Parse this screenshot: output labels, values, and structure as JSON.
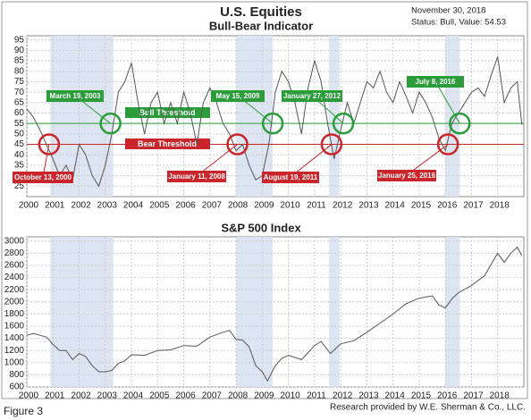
{
  "chart_data": [
    {
      "type": "line",
      "title": "U.S. Equities",
      "subtitle": "Bull-Bear Indicator",
      "date_note": "November 30, 2018",
      "status_note": "Status: Bull, Value: 54.53",
      "color": "#555555",
      "shade_color": "#dce5f1",
      "x": [
        2000,
        2000.25,
        2000.5,
        2000.75,
        2001,
        2001.25,
        2001.5,
        2001.75,
        2002,
        2002.25,
        2002.5,
        2002.75,
        2003,
        2003.25,
        2003.5,
        2003.75,
        2004,
        2004.25,
        2004.5,
        2004.75,
        2005,
        2005.25,
        2005.5,
        2005.75,
        2006,
        2006.25,
        2006.5,
        2006.75,
        2007,
        2007.25,
        2007.5,
        2007.75,
        2008,
        2008.25,
        2008.5,
        2008.75,
        2009,
        2009.25,
        2009.5,
        2009.75,
        2010,
        2010.25,
        2010.5,
        2010.75,
        2011,
        2011.25,
        2011.5,
        2011.75,
        2012,
        2012.25,
        2012.5,
        2012.75,
        2013,
        2013.25,
        2013.5,
        2013.75,
        2014,
        2014.25,
        2014.5,
        2014.75,
        2015,
        2015.25,
        2015.5,
        2015.75,
        2016,
        2016.25,
        2016.5,
        2016.75,
        2017,
        2017.25,
        2017.5,
        2017.75,
        2018,
        2018.25,
        2018.5,
        2018.75,
        2018.92
      ],
      "values": [
        62,
        58,
        52,
        45,
        38,
        30,
        35,
        28,
        45,
        40,
        30,
        25,
        35,
        50,
        70,
        75,
        84,
        65,
        50,
        65,
        70,
        55,
        65,
        55,
        70,
        60,
        45,
        65,
        72,
        65,
        55,
        50,
        42,
        45,
        35,
        28,
        30,
        45,
        70,
        80,
        75,
        65,
        50,
        72,
        85,
        75,
        55,
        38,
        52,
        65,
        55,
        65,
        75,
        72,
        80,
        70,
        65,
        75,
        68,
        60,
        70,
        65,
        58,
        48,
        42,
        55,
        60,
        65,
        70,
        72,
        68,
        78,
        87,
        65,
        72,
        75,
        54.53
      ],
      "xlim": [
        2000,
        2019
      ],
      "xticks": [
        2000,
        2001,
        2002,
        2003,
        2004,
        2005,
        2006,
        2007,
        2008,
        2009,
        2010,
        2011,
        2012,
        2013,
        2014,
        2015,
        2016,
        2017,
        2018
      ],
      "ylim": [
        20,
        97
      ],
      "yticks": [
        25,
        30,
        35,
        40,
        45,
        50,
        55,
        60,
        65,
        70,
        75,
        80,
        85,
        90,
        95
      ],
      "shaded_periods": [
        [
          2000.9,
          2003.3
        ],
        [
          2008,
          2009.4
        ],
        [
          2011.55,
          2011.95
        ],
        [
          2016,
          2016.55
        ]
      ],
      "thresholds": [
        {
          "label": "Bull Threshold",
          "value": 55,
          "color": "#2a9d3a"
        },
        {
          "label": "Bear Threshold",
          "value": 45,
          "color": "#c9252b"
        }
      ],
      "annotations": [
        {
          "label": "March 19, 2003",
          "x": 2003.2,
          "y": 55,
          "color": "#2a9d3a"
        },
        {
          "label": "May 15, 2009",
          "x": 2009.4,
          "y": 55,
          "color": "#2a9d3a"
        },
        {
          "label": "January 27, 2012",
          "x": 2012.1,
          "y": 55,
          "color": "#2a9d3a"
        },
        {
          "label": "July 8, 2016",
          "x": 2016.55,
          "y": 55,
          "color": "#2a9d3a"
        },
        {
          "label": "October 13, 2000",
          "x": 2000.85,
          "y": 45,
          "color": "#c9252b"
        },
        {
          "label": "January 11, 2008",
          "x": 2008.05,
          "y": 45,
          "color": "#c9252b"
        },
        {
          "label": "August 19, 2011",
          "x": 2011.65,
          "y": 45,
          "color": "#c9252b"
        },
        {
          "label": "January 25, 2016",
          "x": 2016.1,
          "y": 45,
          "color": "#c9252b"
        }
      ]
    },
    {
      "type": "line",
      "title": "S&P 500 Index",
      "color": "#555555",
      "shade_color": "#dce5f1",
      "x": [
        2000,
        2000.25,
        2000.5,
        2000.75,
        2001,
        2001.25,
        2001.5,
        2001.75,
        2002,
        2002.25,
        2002.5,
        2002.75,
        2003,
        2003.25,
        2003.5,
        2003.75,
        2004,
        2004.5,
        2005,
        2005.5,
        2006,
        2006.5,
        2007,
        2007.5,
        2007.75,
        2008,
        2008.25,
        2008.5,
        2008.75,
        2009,
        2009.2,
        2009.5,
        2009.75,
        2010,
        2010.5,
        2011,
        2011.25,
        2011.6,
        2012,
        2012.5,
        2013,
        2013.5,
        2014,
        2014.5,
        2015,
        2015.5,
        2015.75,
        2016,
        2016.25,
        2016.5,
        2017,
        2017.5,
        2018,
        2018.25,
        2018.5,
        2018.75,
        2018.92
      ],
      "values": [
        1450,
        1480,
        1450,
        1420,
        1300,
        1200,
        1200,
        1050,
        1150,
        1100,
        950,
        850,
        850,
        870,
        990,
        1030,
        1130,
        1120,
        1200,
        1210,
        1280,
        1270,
        1420,
        1500,
        1530,
        1380,
        1370,
        1260,
        950,
        850,
        700,
        950,
        1070,
        1120,
        1050,
        1280,
        1350,
        1150,
        1310,
        1360,
        1500,
        1650,
        1800,
        1970,
        2060,
        2100,
        1950,
        1900,
        2050,
        2150,
        2270,
        2430,
        2800,
        2650,
        2800,
        2900,
        2760
      ],
      "xlim": [
        2000,
        2019
      ],
      "xticks": [
        2000,
        2001,
        2002,
        2003,
        2004,
        2005,
        2006,
        2007,
        2008,
        2009,
        2010,
        2011,
        2012,
        2013,
        2014,
        2015,
        2016,
        2017,
        2018
      ],
      "ylim": [
        600,
        3070
      ],
      "yticks": [
        600,
        800,
        1000,
        1200,
        1400,
        1600,
        1800,
        2000,
        2200,
        2400,
        2600,
        2800,
        3000
      ],
      "shaded_periods": [
        [
          2000.9,
          2003.3
        ],
        [
          2008,
          2009.4
        ],
        [
          2011.55,
          2011.95
        ],
        [
          2016,
          2016.55
        ]
      ]
    }
  ],
  "footer": {
    "figure": "Figure 3",
    "credit": "Research provided by W.E. Sherman & Co., LLC."
  }
}
